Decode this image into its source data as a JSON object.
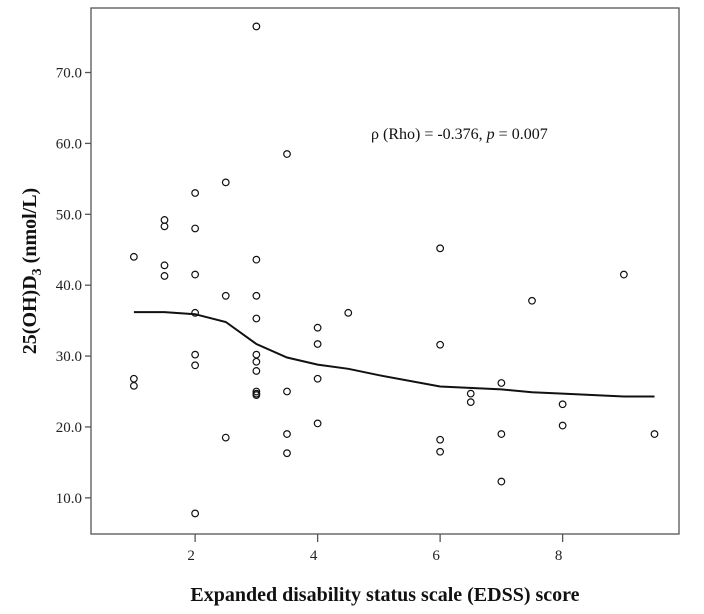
{
  "chart_data": {
    "type": "scatter",
    "xlabel": "Expanded disability status scale (EDSS) score",
    "ylabel_main": "25(OH)D",
    "ylabel_sub": "3",
    "ylabel_unit": " (nmol/L)",
    "annotation": {
      "prefix": "ρ (Rho) = -0.376, ",
      "p_symbol": "p",
      "suffix": " = 0.007"
    },
    "xlim": [
      0.3,
      9.9
    ],
    "ylim": [
      4.9,
      79.1
    ],
    "x_ticks": [
      2,
      4,
      6,
      8
    ],
    "x_tick_labels": [
      "2",
      "4",
      "6",
      "8"
    ],
    "y_ticks": [
      10,
      20,
      30,
      40,
      50,
      60,
      70
    ],
    "y_tick_labels": [
      "10.0",
      "20.0",
      "30.0",
      "40.0",
      "50.0",
      "60.0",
      "70.0"
    ],
    "grid": false,
    "points": [
      [
        1,
        44.0
      ],
      [
        1,
        26.8
      ],
      [
        1,
        25.8
      ],
      [
        1.5,
        49.2
      ],
      [
        1.5,
        48.3
      ],
      [
        1.5,
        42.8
      ],
      [
        1.5,
        41.3
      ],
      [
        2,
        53.0
      ],
      [
        2,
        48.0
      ],
      [
        2,
        41.5
      ],
      [
        2,
        36.1
      ],
      [
        2,
        30.2
      ],
      [
        2,
        28.7
      ],
      [
        2,
        7.8
      ],
      [
        2.5,
        54.5
      ],
      [
        2.5,
        38.5
      ],
      [
        2.5,
        18.5
      ],
      [
        3,
        76.5
      ],
      [
        3,
        43.6
      ],
      [
        3,
        38.5
      ],
      [
        3,
        35.3
      ],
      [
        3,
        30.2
      ],
      [
        3,
        29.2
      ],
      [
        3,
        27.9
      ],
      [
        3,
        25.0
      ],
      [
        3,
        24.7
      ],
      [
        3,
        24.5
      ],
      [
        3.5,
        58.5
      ],
      [
        3.5,
        25.0
      ],
      [
        3.5,
        19.0
      ],
      [
        3.5,
        16.3
      ],
      [
        4,
        34.0
      ],
      [
        4,
        31.7
      ],
      [
        4,
        26.8
      ],
      [
        4,
        20.5
      ],
      [
        4.5,
        36.1
      ],
      [
        6,
        45.2
      ],
      [
        6,
        31.6
      ],
      [
        6,
        18.2
      ],
      [
        6,
        16.5
      ],
      [
        6.5,
        24.7
      ],
      [
        6.5,
        23.5
      ],
      [
        7,
        26.2
      ],
      [
        7,
        19.0
      ],
      [
        7,
        12.3
      ],
      [
        7.5,
        37.8
      ],
      [
        8,
        23.2
      ],
      [
        8,
        20.2
      ],
      [
        9,
        41.5
      ],
      [
        9.5,
        19.0
      ]
    ],
    "fit_line": {
      "type": "loess",
      "points": [
        [
          1,
          36.2
        ],
        [
          1.5,
          36.2
        ],
        [
          2,
          35.9
        ],
        [
          2.5,
          34.8
        ],
        [
          3,
          31.7
        ],
        [
          3.5,
          29.8
        ],
        [
          4,
          28.8
        ],
        [
          4.5,
          28.2
        ],
        [
          5,
          27.3
        ],
        [
          6,
          25.7
        ],
        [
          7,
          25.3
        ],
        [
          7.5,
          24.9
        ],
        [
          8,
          24.7
        ],
        [
          9,
          24.3
        ],
        [
          9.5,
          24.3
        ]
      ]
    }
  }
}
